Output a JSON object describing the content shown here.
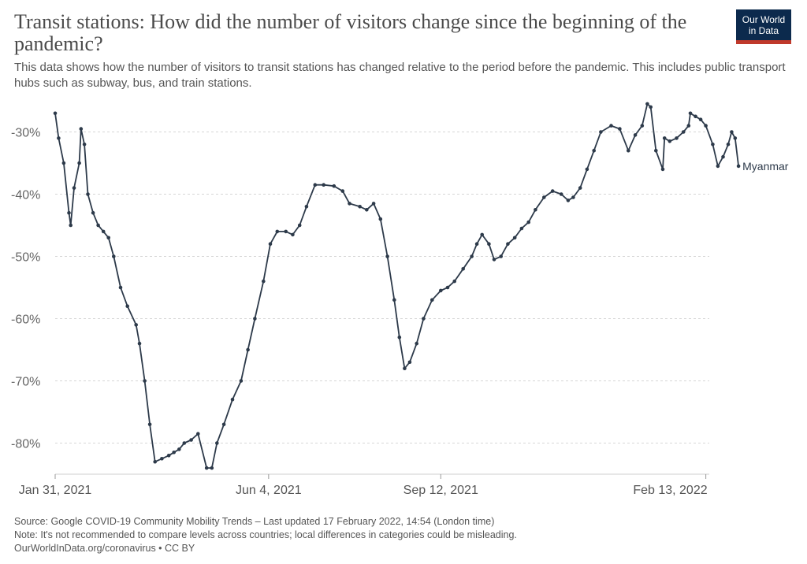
{
  "header": {
    "title": "Transit stations: How did the number of visitors change since the beginning of the pandemic?",
    "subtitle": "This data shows how the number of visitors to transit stations has changed relative to the period before the pandemic. This includes public transport hubs such as subway, bus, and train stations.",
    "logo_line1": "Our World",
    "logo_line2": "in Data",
    "logo_color": "#0c2a4d",
    "logo_accent": "#c0392b"
  },
  "footer": {
    "source": "Source: Google COVID-19 Community Mobility Trends – Last updated 17 February 2022, 14:54 (London time)",
    "note": "Note: It's not recommended to compare levels across countries; local differences in categories could be misleading.",
    "credit": "OurWorldInData.org/coronavirus • CC BY"
  },
  "chart_data": {
    "type": "line",
    "title": "Transit stations: How did the number of visitors change since the beginning of the pandemic?",
    "ylim": [
      -85,
      -25
    ],
    "y_ticks": [
      -30,
      -40,
      -50,
      -60,
      -70,
      -80
    ],
    "y_tick_labels": [
      "-30%",
      "-40%",
      "-50%",
      "-60%",
      "-70%",
      "-80%"
    ],
    "xlim": [
      "2021-01-31",
      "2022-02-15"
    ],
    "x_ticks": [
      "2021-01-31",
      "2021-06-04",
      "2021-09-12",
      "2022-02-13"
    ],
    "x_tick_labels": [
      "Jan 31, 2021",
      "Jun 4, 2021",
      "Sep 12, 2021",
      "Feb 13, 2022"
    ],
    "grid": "horizontal dotted",
    "line_color": "#2d3a4a",
    "markers": true,
    "series": [
      {
        "name": "Myanmar",
        "points": [
          [
            "2021-01-31",
            -27
          ],
          [
            "2021-02-02",
            -31
          ],
          [
            "2021-02-05",
            -35
          ],
          [
            "2021-02-08",
            -43
          ],
          [
            "2021-02-09",
            -45
          ],
          [
            "2021-02-11",
            -39
          ],
          [
            "2021-02-14",
            -35
          ],
          [
            "2021-02-15",
            -29.5
          ],
          [
            "2021-02-17",
            -32
          ],
          [
            "2021-02-19",
            -40
          ],
          [
            "2021-02-22",
            -43
          ],
          [
            "2021-02-25",
            -45
          ],
          [
            "2021-02-28",
            -46
          ],
          [
            "2021-03-03",
            -47
          ],
          [
            "2021-03-06",
            -50
          ],
          [
            "2021-03-10",
            -55
          ],
          [
            "2021-03-14",
            -58
          ],
          [
            "2021-03-19",
            -61
          ],
          [
            "2021-03-21",
            -64
          ],
          [
            "2021-03-24",
            -70
          ],
          [
            "2021-03-27",
            -77
          ],
          [
            "2021-03-30",
            -83
          ],
          [
            "2021-04-03",
            -82.5
          ],
          [
            "2021-04-07",
            -82
          ],
          [
            "2021-04-10",
            -81.5
          ],
          [
            "2021-04-13",
            -81
          ],
          [
            "2021-04-16",
            -80
          ],
          [
            "2021-04-20",
            -79.5
          ],
          [
            "2021-04-24",
            -78.5
          ],
          [
            "2021-04-29",
            -84
          ],
          [
            "2021-05-02",
            -84
          ],
          [
            "2021-05-05",
            -80
          ],
          [
            "2021-05-09",
            -77
          ],
          [
            "2021-05-14",
            -73
          ],
          [
            "2021-05-19",
            -70
          ],
          [
            "2021-05-23",
            -65
          ],
          [
            "2021-05-27",
            -60
          ],
          [
            "2021-06-01",
            -54
          ],
          [
            "2021-06-05",
            -48
          ],
          [
            "2021-06-09",
            -46
          ],
          [
            "2021-06-14",
            -46
          ],
          [
            "2021-06-18",
            -46.5
          ],
          [
            "2021-06-22",
            -45
          ],
          [
            "2021-06-26",
            -42
          ],
          [
            "2021-07-01",
            -38.5
          ],
          [
            "2021-07-06",
            -38.5
          ],
          [
            "2021-07-12",
            -38.7
          ],
          [
            "2021-07-17",
            -39.5
          ],
          [
            "2021-07-21",
            -41.5
          ],
          [
            "2021-07-27",
            -42
          ],
          [
            "2021-07-31",
            -42.5
          ],
          [
            "2021-08-04",
            -41.5
          ],
          [
            "2021-08-08",
            -44
          ],
          [
            "2021-08-12",
            -50
          ],
          [
            "2021-08-16",
            -57
          ],
          [
            "2021-08-19",
            -63
          ],
          [
            "2021-08-22",
            -68
          ],
          [
            "2021-08-25",
            -67
          ],
          [
            "2021-08-29",
            -64
          ],
          [
            "2021-09-02",
            -60
          ],
          [
            "2021-09-07",
            -57
          ],
          [
            "2021-09-12",
            -55.5
          ],
          [
            "2021-09-16",
            -55
          ],
          [
            "2021-09-20",
            -54
          ],
          [
            "2021-09-25",
            -52
          ],
          [
            "2021-09-30",
            -50
          ],
          [
            "2021-10-03",
            -48
          ],
          [
            "2021-10-06",
            -46.5
          ],
          [
            "2021-10-10",
            -48
          ],
          [
            "2021-10-13",
            -50.5
          ],
          [
            "2021-10-17",
            -50
          ],
          [
            "2021-10-21",
            -48
          ],
          [
            "2021-10-25",
            -47
          ],
          [
            "2021-10-29",
            -45.5
          ],
          [
            "2021-11-02",
            -44.5
          ],
          [
            "2021-11-06",
            -42.5
          ],
          [
            "2021-11-11",
            -40.5
          ],
          [
            "2021-11-16",
            -39.5
          ],
          [
            "2021-11-21",
            -40
          ],
          [
            "2021-11-25",
            -41
          ],
          [
            "2021-11-28",
            -40.5
          ],
          [
            "2021-12-02",
            -39
          ],
          [
            "2021-12-06",
            -36
          ],
          [
            "2021-12-10",
            -33
          ],
          [
            "2021-12-14",
            -30
          ],
          [
            "2021-12-20",
            -29
          ],
          [
            "2021-12-25",
            -29.5
          ],
          [
            "2021-12-30",
            -33
          ],
          [
            "2022-01-03",
            -30.5
          ],
          [
            "2022-01-07",
            -29
          ],
          [
            "2022-01-10",
            -25.5
          ],
          [
            "2022-01-12",
            -26
          ],
          [
            "2022-01-15",
            -33
          ],
          [
            "2022-01-19",
            -36
          ],
          [
            "2022-01-20",
            -31
          ],
          [
            "2022-01-23",
            -31.5
          ],
          [
            "2022-01-27",
            -31
          ],
          [
            "2022-01-31",
            -30
          ],
          [
            "2022-02-03",
            -29
          ],
          [
            "2022-02-04",
            -27
          ],
          [
            "2022-02-07",
            -27.5
          ],
          [
            "2022-02-10",
            -28
          ],
          [
            "2022-02-13",
            -29
          ],
          [
            "2022-02-17",
            -32
          ],
          [
            "2022-02-20",
            -35.5
          ],
          [
            "2022-02-23",
            -34
          ],
          [
            "2022-02-26",
            -32
          ],
          [
            "2022-02-28",
            -30
          ],
          [
            "2022-03-02",
            -31
          ],
          [
            "2022-03-04",
            -35.5
          ]
        ]
      }
    ]
  }
}
